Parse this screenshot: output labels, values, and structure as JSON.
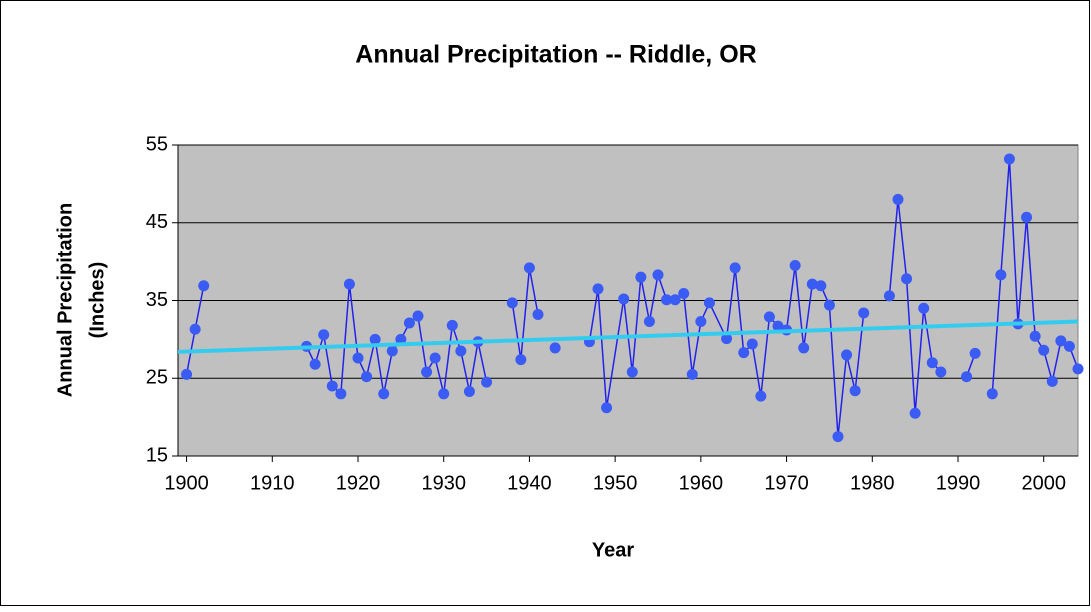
{
  "chart_data": {
    "type": "line",
    "title": "Annual Precipitation -- Riddle, OR",
    "xlabel": "Year",
    "ylabel": [
      "Annual Precipitation",
      "(Inches)"
    ],
    "x": [
      1900,
      1901,
      1902,
      1903,
      1914,
      1915,
      1916,
      1917,
      1918,
      1919,
      1920,
      1921,
      1922,
      1923,
      1924,
      1925,
      1926,
      1927,
      1928,
      1929,
      1930,
      1931,
      1932,
      1933,
      1934,
      1935,
      1936,
      1938,
      1939,
      1940,
      1941,
      1942,
      1943,
      1944,
      1947,
      1948,
      1949,
      1951,
      1952,
      1953,
      1954,
      1955,
      1956,
      1957,
      1958,
      1959,
      1960,
      1961,
      1963,
      1964,
      1965,
      1966,
      1967,
      1968,
      1969,
      1970,
      1971,
      1972,
      1973,
      1974,
      1975,
      1976,
      1977,
      1978,
      1979,
      1980,
      1982,
      1983,
      1984,
      1985,
      1986,
      1987,
      1988,
      1989,
      1991,
      1992,
      1993,
      1994,
      1995,
      1996,
      1997,
      1998,
      1999,
      2000,
      2001,
      2002,
      2003,
      2004
    ],
    "series": [
      {
        "name": "Annual Precipitation",
        "color": "#2222ee",
        "marker_color": "#3a5cf5",
        "values": [
          25.5,
          31.3,
          36.9,
          null,
          29.1,
          26.8,
          30.6,
          24,
          23,
          37.1,
          27.6,
          25.2,
          30,
          23,
          28.5,
          30,
          32.1,
          33,
          25.8,
          27.6,
          23,
          31.8,
          28.5,
          23.3,
          29.7,
          24.5,
          null,
          34.7,
          27.4,
          39.2,
          33.2,
          null,
          28.9,
          null,
          29.7,
          36.5,
          21.2,
          35.2,
          25.8,
          38,
          32.3,
          38.3,
          35.1,
          35.1,
          35.9,
          25.5,
          32.3,
          34.7,
          30.1,
          39.2,
          28.3,
          29.4,
          22.7,
          32.9,
          31.7,
          31.2,
          39.5,
          28.9,
          37.1,
          36.9,
          34.4,
          17.5,
          28,
          23.4,
          33.4,
          null,
          35.6,
          48,
          37.8,
          20.5,
          34,
          27,
          25.8,
          null,
          25.2,
          28.2,
          null,
          23,
          38.3,
          53.2,
          32,
          45.7,
          30.4,
          28.6,
          24.6,
          29.8,
          29.1,
          26.2
        ]
      }
    ],
    "trendline": {
      "x": [
        1899,
        2004
      ],
      "values": [
        28.4,
        32.3
      ],
      "color": "#33ccee"
    },
    "xlim": [
      1899,
      2004
    ],
    "xticks": [
      1900,
      1910,
      1920,
      1930,
      1940,
      1950,
      1960,
      1970,
      1980,
      1990,
      2000
    ],
    "ylim": [
      15,
      55
    ],
    "yticks": [
      15,
      25,
      35,
      45,
      55
    ],
    "grid": true
  }
}
